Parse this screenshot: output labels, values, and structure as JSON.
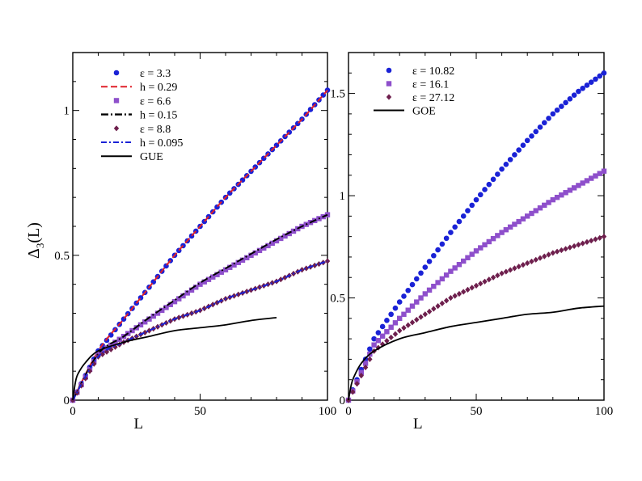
{
  "chart_data": [
    {
      "type": "line",
      "xlabel": "L",
      "ylabel": "Δ3(L)",
      "ylabel_main": "Δ",
      "ylabel_sub": "3",
      "ylabel_rest": "(L)",
      "xlim": [
        0,
        100
      ],
      "ylim": [
        0,
        1.2
      ],
      "xticks": [
        0,
        50,
        100
      ],
      "xtick_labels": [
        "0",
        "50",
        "100"
      ],
      "yticks": [
        0,
        0.5,
        1
      ],
      "ytick_labels": [
        "0",
        "0.5",
        "1"
      ],
      "legend_position": "top-left",
      "legend": [
        {
          "label": "ε = 3.3",
          "marker": "circle",
          "color": "#1a22d6"
        },
        {
          "label": "h = 0.29",
          "line": "dashed",
          "color": "#e0202a"
        },
        {
          "label": "ε = 6.6",
          "marker": "square",
          "color": "#8e4fcb"
        },
        {
          "label": "h = 0.15",
          "line": "dashdot",
          "color": "#000000"
        },
        {
          "label": "ε = 8.8",
          "marker": "diamond",
          "color": "#6e1f4d"
        },
        {
          "label": "h = 0.095",
          "line": "dashdot-thin",
          "color": "#1a22d6"
        },
        {
          "label": "GUE",
          "line": "solid",
          "color": "#000000"
        }
      ],
      "series": [
        {
          "name": "ε = 3.3",
          "kind": "markers",
          "marker": "circle",
          "color": "#1a22d6",
          "x": [
            0,
            10,
            20,
            30,
            40,
            50,
            60,
            70,
            80,
            90,
            100
          ],
          "y": [
            0,
            0.17,
            0.28,
            0.39,
            0.5,
            0.6,
            0.7,
            0.79,
            0.88,
            0.97,
            1.07
          ]
        },
        {
          "name": "h = 0.29",
          "kind": "line",
          "dash": "8 4",
          "color": "#e0202a",
          "x": [
            0,
            10,
            20,
            30,
            40,
            50,
            60,
            70,
            80,
            90,
            100
          ],
          "y": [
            0,
            0.17,
            0.28,
            0.39,
            0.5,
            0.6,
            0.7,
            0.79,
            0.88,
            0.97,
            1.07
          ]
        },
        {
          "name": "ε = 6.6",
          "kind": "markers",
          "marker": "square",
          "color": "#8e4fcb",
          "x": [
            0,
            10,
            20,
            30,
            40,
            50,
            60,
            70,
            80,
            90,
            100
          ],
          "y": [
            0,
            0.16,
            0.22,
            0.28,
            0.34,
            0.4,
            0.45,
            0.5,
            0.55,
            0.6,
            0.64
          ]
        },
        {
          "name": "h = 0.15",
          "kind": "line",
          "dash": "9 3 2 3",
          "color": "#000000",
          "x": [
            0,
            10,
            20,
            30,
            40,
            50,
            60,
            70,
            80,
            90,
            100
          ],
          "y": [
            0,
            0.16,
            0.22,
            0.285,
            0.345,
            0.405,
            0.455,
            0.505,
            0.555,
            0.6,
            0.64
          ]
        },
        {
          "name": "ε = 8.8",
          "kind": "markers",
          "marker": "diamond",
          "color": "#6e1f4d",
          "x": [
            0,
            10,
            20,
            30,
            40,
            50,
            60,
            70,
            80,
            90,
            100
          ],
          "y": [
            0,
            0.15,
            0.2,
            0.24,
            0.28,
            0.31,
            0.35,
            0.38,
            0.41,
            0.45,
            0.48
          ]
        },
        {
          "name": "h = 0.095",
          "kind": "line",
          "dash": "7 3 2 3",
          "color": "#1a22d6",
          "x": [
            0,
            10,
            20,
            30,
            40,
            50,
            60,
            70,
            80,
            90,
            100
          ],
          "y": [
            0,
            0.15,
            0.2,
            0.24,
            0.28,
            0.31,
            0.35,
            0.38,
            0.41,
            0.45,
            0.48
          ]
        },
        {
          "name": "GUE",
          "kind": "line",
          "dash": "",
          "color": "#000000",
          "x": [
            0,
            1,
            2,
            5,
            10,
            20,
            30,
            40,
            50,
            60,
            70,
            80
          ],
          "y": [
            0,
            0.06,
            0.09,
            0.13,
            0.17,
            0.2,
            0.22,
            0.24,
            0.25,
            0.26,
            0.275,
            0.285
          ]
        }
      ]
    },
    {
      "type": "line",
      "xlabel": "L",
      "xlim": [
        0,
        100
      ],
      "ylim": [
        0,
        1.7
      ],
      "xticks": [
        0,
        50,
        100
      ],
      "xtick_labels": [
        "0",
        "50",
        "100"
      ],
      "yticks": [
        0,
        0.5,
        1,
        1.5
      ],
      "ytick_labels": [
        "0",
        "0.5",
        "1",
        "1.5"
      ],
      "legend_position": "top-left",
      "legend": [
        {
          "label": "ε = 10.82",
          "marker": "circle",
          "color": "#1a22d6"
        },
        {
          "label": "ε = 16.1",
          "marker": "square",
          "color": "#8e4fcb"
        },
        {
          "label": "ε = 27.12",
          "marker": "diamond",
          "color": "#6e1f4d"
        },
        {
          "label": "GOE",
          "line": "solid",
          "color": "#000000"
        }
      ],
      "series": [
        {
          "name": "ε = 10.82",
          "kind": "markers",
          "marker": "circle",
          "color": "#1a22d6",
          "x": [
            0,
            10,
            20,
            30,
            40,
            50,
            60,
            70,
            80,
            90,
            100
          ],
          "y": [
            0,
            0.3,
            0.48,
            0.65,
            0.82,
            0.98,
            1.13,
            1.27,
            1.4,
            1.51,
            1.6
          ]
        },
        {
          "name": "ε = 16.1",
          "kind": "markers",
          "marker": "square",
          "color": "#8e4fcb",
          "x": [
            0,
            10,
            20,
            30,
            40,
            50,
            60,
            70,
            80,
            90,
            100
          ],
          "y": [
            0,
            0.27,
            0.4,
            0.52,
            0.63,
            0.73,
            0.82,
            0.9,
            0.98,
            1.05,
            1.12
          ]
        },
        {
          "name": "ε = 27.12",
          "kind": "markers",
          "marker": "diamond",
          "color": "#6e1f4d",
          "x": [
            0,
            10,
            20,
            30,
            40,
            50,
            60,
            70,
            80,
            90,
            100
          ],
          "y": [
            0,
            0.24,
            0.34,
            0.42,
            0.5,
            0.56,
            0.62,
            0.67,
            0.72,
            0.76,
            0.8
          ]
        },
        {
          "name": "GOE",
          "kind": "line",
          "dash": "",
          "color": "#000000",
          "x": [
            0,
            1,
            2,
            5,
            10,
            20,
            30,
            40,
            50,
            60,
            70,
            80,
            90,
            100
          ],
          "y": [
            0,
            0.07,
            0.11,
            0.18,
            0.24,
            0.3,
            0.33,
            0.36,
            0.38,
            0.4,
            0.42,
            0.43,
            0.45,
            0.46
          ]
        }
      ]
    }
  ]
}
